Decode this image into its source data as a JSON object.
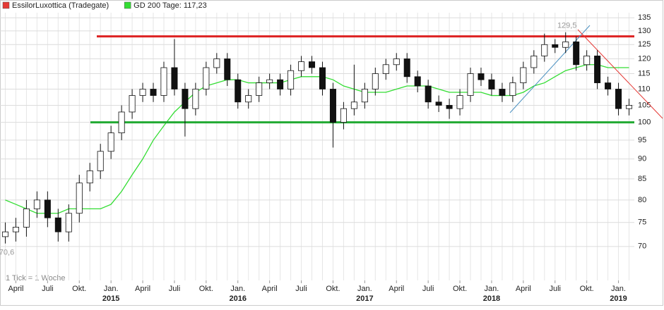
{
  "chart_data": {
    "type": "candlestick",
    "title_legend": true,
    "footnote": "1 Tick = 1 Woche",
    "categories": [
      null,
      "April",
      null,
      null,
      "Juli",
      null,
      null,
      "Okt.",
      null,
      null,
      "Jan.",
      null,
      null,
      "April",
      null,
      null,
      "Juli",
      null,
      null,
      "Okt.",
      null,
      null,
      "Jan.",
      null,
      null,
      "April",
      null,
      null,
      "Juli",
      null,
      null,
      "Okt.",
      null,
      null,
      "Jan.",
      null,
      null,
      "April",
      null,
      null,
      "Juli",
      null,
      null,
      "Okt.",
      null,
      null,
      "Jan.",
      null,
      null,
      "April",
      null,
      null,
      "Juli",
      null,
      null,
      "Okt.",
      null,
      null,
      "Jan.",
      null
    ],
    "year_labels": [
      "2015",
      "2016",
      "2017",
      "2018",
      "2019"
    ],
    "ylim": [
      63.5,
      137
    ],
    "log_y": true,
    "yticks": [
      70,
      75,
      80,
      85,
      90,
      95,
      100,
      105,
      110,
      115,
      120,
      125,
      130,
      135
    ],
    "grid": true,
    "series": [
      {
        "name": "EssilorLuxottica (Tradegate)",
        "color": "#e53935",
        "open": [
          72,
          73,
          74,
          78,
          80,
          76,
          73,
          77,
          84,
          87,
          92,
          97,
          103,
          108,
          110,
          108,
          117,
          110,
          104,
          110,
          117,
          120,
          113,
          106,
          108,
          112,
          113,
          110,
          116,
          119,
          117,
          110,
          100,
          104,
          106,
          110,
          115,
          118,
          120,
          114,
          111,
          106,
          105,
          104,
          108,
          115,
          113,
          110,
          108,
          112,
          117,
          121,
          125,
          124,
          126,
          118,
          121,
          112,
          110,
          104
        ],
        "high": [
          75,
          76,
          80,
          82,
          82,
          78,
          79,
          86,
          89,
          94,
          99,
          105,
          110,
          112,
          112,
          119,
          127,
          112,
          112,
          119,
          122,
          122,
          115,
          110,
          114,
          115,
          115,
          118,
          121,
          121,
          119,
          112,
          106,
          118,
          112,
          117,
          120,
          122,
          122,
          116,
          113,
          108,
          107,
          110,
          117,
          117,
          115,
          112,
          114,
          119,
          123,
          129,
          127,
          129.5,
          128,
          123,
          123,
          114,
          112,
          107
        ],
        "low": [
          70.6,
          71,
          72,
          76,
          74,
          71,
          71,
          75,
          82,
          85,
          90,
          95,
          101,
          106,
          106,
          106,
          108,
          96,
          102,
          108,
          115,
          111,
          104,
          104,
          106,
          110,
          108,
          108,
          114,
          115,
          108,
          93,
          98,
          102,
          104,
          108,
          113,
          116,
          112,
          109,
          104,
          103,
          101,
          102,
          106,
          111,
          108,
          106,
          106,
          110,
          115,
          119,
          122,
          122,
          116,
          116,
          110,
          108,
          102,
          102
        ],
        "close": [
          73,
          74,
          78,
          80,
          76,
          73,
          77,
          84,
          87,
          92,
          97,
          103,
          108,
          110,
          108,
          117,
          110,
          104,
          110,
          117,
          120,
          113,
          106,
          108,
          112,
          113,
          110,
          116,
          119,
          117,
          110,
          100,
          104,
          106,
          110,
          115,
          118,
          120,
          114,
          111,
          106,
          105,
          104,
          108,
          115,
          113,
          110,
          108,
          112,
          117,
          121,
          125,
          124,
          126,
          118,
          121,
          112,
          110,
          104,
          105
        ]
      },
      {
        "name": "GD 200 Tage: 117,23",
        "color": "#33dd33",
        "values": [
          80,
          79,
          78,
          77,
          77,
          77,
          78,
          78,
          78,
          78,
          79,
          82,
          86,
          90,
          95,
          99,
          103,
          106,
          109,
          111,
          112,
          113,
          113,
          112,
          112,
          112,
          112,
          113,
          114,
          114,
          114,
          113,
          111,
          110,
          109,
          109,
          109,
          110,
          111,
          111,
          111,
          110,
          109,
          109,
          109,
          109,
          108,
          108,
          108,
          109,
          111,
          112,
          114,
          116,
          117,
          118,
          118,
          117,
          117,
          117
        ]
      }
    ],
    "hlines": [
      {
        "value": 128,
        "color": "#dd2222"
      },
      {
        "value": 100,
        "color": "#22aa33"
      }
    ],
    "annotations": [
      {
        "text": "129,5",
        "value": 129.5
      },
      {
        "text": "70,6",
        "value": 70.6
      }
    ]
  }
}
